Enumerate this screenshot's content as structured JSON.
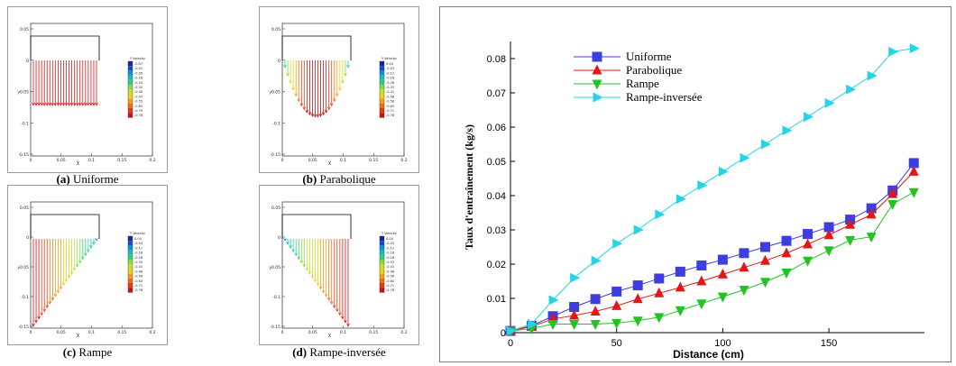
{
  "subfigures": [
    {
      "letter": "(a)",
      "name": "Uniforme",
      "shape": "uniform"
    },
    {
      "letter": "(b)",
      "name": "Parabolique",
      "shape": "parabolic"
    },
    {
      "letter": "(c)",
      "name": "Rampe",
      "shape": "ramp"
    },
    {
      "letter": "(d)",
      "name": "Rampe-inversée",
      "shape": "ramp-inv"
    }
  ],
  "small_axis": {
    "y_ticks": [
      "0.05",
      "0",
      "y0.05",
      "-0.1",
      "-0.15"
    ],
    "x_ticks": [
      "0",
      "0.05",
      "0.1",
      "0.15",
      "0.2"
    ],
    "xlabel": "X"
  },
  "legends": [
    {
      "title": "Y Velocity",
      "values": [
        "-0.07",
        "-0.01",
        "-0.05",
        "-0.16",
        "-0.24",
        "-0.32",
        "-0.40",
        "-0.47",
        "-0.55",
        "-0.63",
        "-0.70",
        "-0.78"
      ]
    },
    {
      "title": "Y Velocity",
      "values": [
        "0.04",
        "-0.03",
        "-0.12",
        "-0.18",
        "-0.26",
        "-0.33",
        "-0.41",
        "-0.48",
        "-0.56",
        "-0.63",
        "-0.71",
        "-0.78"
      ]
    },
    {
      "title": "Y Velocity",
      "values": [
        "0.04",
        "-0.03",
        "-0.11",
        "-0.18",
        "-0.26",
        "-0.33",
        "-0.41",
        "-0.48",
        "-0.56",
        "-0.64",
        "-0.71",
        "-0.78"
      ]
    },
    {
      "title": "Y Velocity",
      "values": [
        "0.04",
        "-0.03",
        "-0.11",
        "-0.18",
        "-0.26",
        "-0.33",
        "-0.41",
        "-0.48",
        "-0.56",
        "-0.64",
        "-0.71",
        "-0.78"
      ]
    }
  ],
  "chart_data": {
    "type": "line",
    "title": "",
    "xlabel": "Distance (cm)",
    "ylabel": "Taux d'entraînement  (kg/s)",
    "xlim": [
      0,
      195
    ],
    "ylim": [
      0,
      0.085
    ],
    "x_ticks": [
      "0",
      "50",
      "100",
      "150"
    ],
    "y_ticks": [
      "0",
      "0.01",
      "0.02",
      "0.03",
      "0.04",
      "0.05",
      "0.06",
      "0.07",
      "0.08"
    ],
    "legend_position": "top-left",
    "x": [
      0,
      10,
      20,
      30,
      40,
      50,
      60,
      70,
      80,
      90,
      100,
      110,
      120,
      130,
      140,
      150,
      160,
      170,
      180,
      190
    ],
    "series": [
      {
        "name": "Uniforme",
        "color": "#3d3de0",
        "marker": "square",
        "values": [
          0.0005,
          0.002,
          0.0048,
          0.0075,
          0.0098,
          0.012,
          0.0138,
          0.0158,
          0.0178,
          0.0196,
          0.0213,
          0.0232,
          0.025,
          0.0268,
          0.0288,
          0.0308,
          0.033,
          0.0363,
          0.0415,
          0.0495
        ]
      },
      {
        "name": "Parabolique",
        "color": "#e01818",
        "marker": "triangle-up",
        "values": [
          0.0005,
          0.0018,
          0.004,
          0.005,
          0.0062,
          0.0078,
          0.0098,
          0.0115,
          0.0132,
          0.015,
          0.017,
          0.019,
          0.021,
          0.0232,
          0.0258,
          0.0285,
          0.0315,
          0.0345,
          0.0405,
          0.047
        ]
      },
      {
        "name": "Rampe",
        "color": "#22c322",
        "marker": "triangle-down",
        "values": [
          0.0005,
          0.0012,
          0.0025,
          0.0025,
          0.0025,
          0.0028,
          0.0035,
          0.0045,
          0.0065,
          0.0085,
          0.0105,
          0.0125,
          0.0148,
          0.0175,
          0.021,
          0.024,
          0.027,
          0.028,
          0.0375,
          0.041
        ]
      },
      {
        "name": "Rampe-inversée",
        "color": "#25d4e8",
        "marker": "triangle-right",
        "values": [
          0.0005,
          0.0025,
          0.0095,
          0.016,
          0.021,
          0.026,
          0.03,
          0.0345,
          0.039,
          0.043,
          0.047,
          0.051,
          0.055,
          0.059,
          0.063,
          0.067,
          0.071,
          0.075,
          0.082,
          0.083
        ]
      }
    ]
  }
}
